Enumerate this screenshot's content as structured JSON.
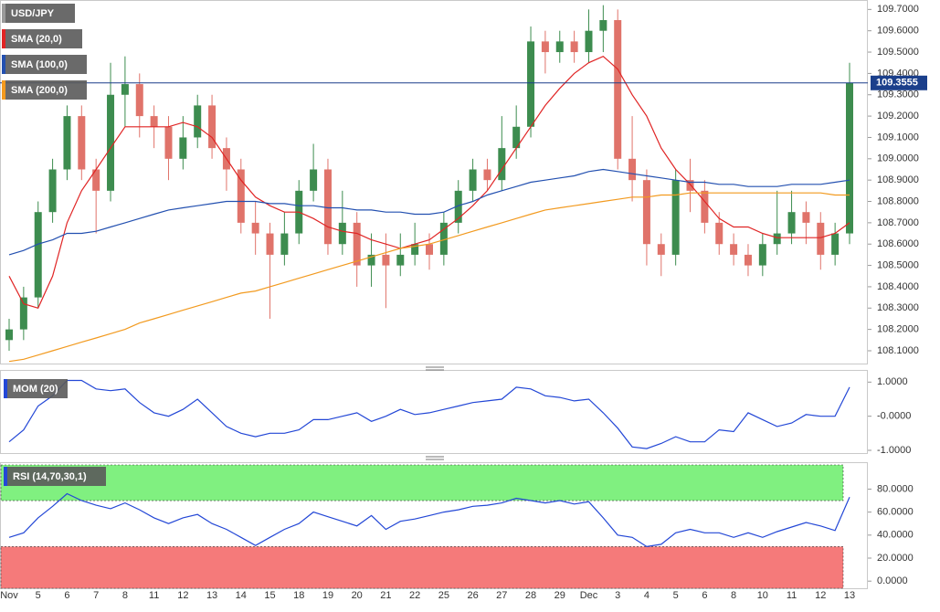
{
  "chart_data": [
    {
      "type": "candlestick",
      "title": "USD/JPY",
      "categories": [
        "Nov",
        null,
        "5",
        null,
        "6",
        null,
        "7",
        null,
        "8",
        null,
        "11",
        null,
        "12",
        null,
        "13",
        null,
        "14",
        null,
        "15",
        null,
        "18",
        null,
        "19",
        null,
        "20",
        null,
        "21",
        null,
        "22",
        null,
        "25",
        null,
        "26",
        null,
        "27",
        null,
        "28",
        null,
        "29",
        null,
        "Dec",
        null,
        "3",
        null,
        "4",
        null,
        "5",
        null,
        "6",
        null,
        "8",
        null,
        "10",
        null,
        "11",
        null,
        "12",
        null,
        "13"
      ],
      "open": [
        108.15,
        108.2,
        108.35,
        108.75,
        108.95,
        109.2,
        108.95,
        108.85,
        109.3,
        109.35,
        109.2,
        109.15,
        109.0,
        109.1,
        109.25,
        109.05,
        108.95,
        108.7,
        108.65,
        108.55,
        108.65,
        108.85,
        108.95,
        108.6,
        108.7,
        108.5,
        108.55,
        108.5,
        108.55,
        108.6,
        108.55,
        108.7,
        108.85,
        108.95,
        108.9,
        109.05,
        109.15,
        109.55,
        109.5,
        109.55,
        109.5,
        109.6,
        109.65,
        109.0,
        108.9,
        108.6,
        108.55,
        108.9,
        108.85,
        108.7,
        108.6,
        108.55,
        108.5,
        108.6,
        108.65,
        108.75,
        108.7,
        108.55,
        108.65
      ],
      "high": [
        108.25,
        108.4,
        108.8,
        109.0,
        109.25,
        109.25,
        109.0,
        109.45,
        109.48,
        109.4,
        109.25,
        109.2,
        109.2,
        109.3,
        109.3,
        109.1,
        109.0,
        108.8,
        108.7,
        108.75,
        108.9,
        109.07,
        109.0,
        108.85,
        108.75,
        108.65,
        108.65,
        108.65,
        108.7,
        108.65,
        108.75,
        108.9,
        109.0,
        109.0,
        109.2,
        109.25,
        109.62,
        109.6,
        109.6,
        109.6,
        109.7,
        109.72,
        109.7,
        109.2,
        108.95,
        108.65,
        108.95,
        109.0,
        108.9,
        108.75,
        108.65,
        108.6,
        108.65,
        108.85,
        108.85,
        108.8,
        108.75,
        108.7,
        109.45
      ],
      "low": [
        108.1,
        108.15,
        108.3,
        108.7,
        108.9,
        108.9,
        108.65,
        108.8,
        109.15,
        109.1,
        109.05,
        108.9,
        108.95,
        109.05,
        109.0,
        108.85,
        108.65,
        108.55,
        108.25,
        108.5,
        108.6,
        108.8,
        108.55,
        108.55,
        108.4,
        108.4,
        108.3,
        108.45,
        108.5,
        108.48,
        108.5,
        108.65,
        108.8,
        108.85,
        108.85,
        109.0,
        109.1,
        109.4,
        109.45,
        109.45,
        109.45,
        109.5,
        108.95,
        108.8,
        108.5,
        108.45,
        108.5,
        108.75,
        108.65,
        108.55,
        108.5,
        108.45,
        108.45,
        108.55,
        108.6,
        108.6,
        108.48,
        108.5,
        108.6
      ],
      "close": [
        108.2,
        108.35,
        108.75,
        108.95,
        109.2,
        108.95,
        108.85,
        109.3,
        109.35,
        109.2,
        109.15,
        109.0,
        109.1,
        109.25,
        109.05,
        108.95,
        108.7,
        108.65,
        108.55,
        108.65,
        108.85,
        108.95,
        108.6,
        108.7,
        108.5,
        108.55,
        108.5,
        108.55,
        108.6,
        108.55,
        108.7,
        108.85,
        108.95,
        108.9,
        109.05,
        109.15,
        109.55,
        109.5,
        109.55,
        109.5,
        109.6,
        109.65,
        109.0,
        108.9,
        108.6,
        108.55,
        108.9,
        108.85,
        108.7,
        108.6,
        108.55,
        108.5,
        108.6,
        108.65,
        108.75,
        108.7,
        108.55,
        108.65,
        109.3555
      ],
      "up_color": "#3d8c4f",
      "down_color": "#e0736a",
      "price_label": "109.3555",
      "price_color": "#1b3f8b",
      "series": [
        {
          "name": "SMA (20,0)",
          "color": "#e02424",
          "values": [
            108.45,
            108.32,
            108.3,
            108.45,
            108.7,
            108.85,
            108.95,
            109.05,
            109.15,
            109.15,
            109.15,
            109.15,
            109.17,
            109.15,
            109.1,
            109.0,
            108.9,
            108.82,
            108.78,
            108.75,
            108.75,
            108.72,
            108.68,
            108.66,
            108.65,
            108.62,
            108.6,
            108.58,
            108.6,
            108.62,
            108.67,
            108.72,
            108.78,
            108.85,
            108.95,
            109.05,
            109.15,
            109.25,
            109.33,
            109.4,
            109.45,
            109.48,
            109.42,
            109.3,
            109.2,
            109.05,
            108.95,
            108.88,
            108.8,
            108.72,
            108.68,
            108.68,
            108.65,
            108.63,
            108.63,
            108.63,
            108.63,
            108.65,
            108.7
          ]
        },
        {
          "name": "SMA (100,0)",
          "color": "#2350b0",
          "values": [
            108.55,
            108.57,
            108.6,
            108.62,
            108.65,
            108.65,
            108.66,
            108.68,
            108.7,
            108.72,
            108.74,
            108.76,
            108.77,
            108.78,
            108.79,
            108.8,
            108.8,
            108.8,
            108.79,
            108.79,
            108.78,
            108.78,
            108.77,
            108.77,
            108.76,
            108.76,
            108.75,
            108.75,
            108.74,
            108.74,
            108.75,
            108.78,
            108.8,
            108.83,
            108.85,
            108.87,
            108.89,
            108.9,
            108.91,
            108.92,
            108.94,
            108.95,
            108.94,
            108.93,
            108.92,
            108.91,
            108.9,
            108.89,
            108.89,
            108.88,
            108.88,
            108.87,
            108.87,
            108.87,
            108.88,
            108.88,
            108.88,
            108.89,
            108.9
          ]
        },
        {
          "name": "SMA (200,0)",
          "color": "#f29a1f",
          "values": [
            108.05,
            108.06,
            108.08,
            108.1,
            108.12,
            108.14,
            108.16,
            108.18,
            108.2,
            108.23,
            108.25,
            108.27,
            108.29,
            108.31,
            108.33,
            108.35,
            108.37,
            108.38,
            108.4,
            108.42,
            108.44,
            108.46,
            108.48,
            108.5,
            108.52,
            108.54,
            108.56,
            108.58,
            108.59,
            108.6,
            108.62,
            108.64,
            108.66,
            108.68,
            108.7,
            108.72,
            108.74,
            108.76,
            108.77,
            108.78,
            108.79,
            108.8,
            108.81,
            108.82,
            108.82,
            108.83,
            108.83,
            108.84,
            108.84,
            108.84,
            108.84,
            108.84,
            108.84,
            108.84,
            108.84,
            108.84,
            108.84,
            108.83,
            108.83
          ]
        }
      ],
      "ylim": [
        108.04,
        109.74
      ],
      "yticks": [
        {
          "value": 108.1,
          "label": "108.1000"
        },
        {
          "value": 108.2,
          "label": "108.2000"
        },
        {
          "value": 108.3,
          "label": "108.3000"
        },
        {
          "value": 108.4,
          "label": "108.4000"
        },
        {
          "value": 108.5,
          "label": "108.5000"
        },
        {
          "value": 108.6,
          "label": "108.6000"
        },
        {
          "value": 108.7,
          "label": "108.7000"
        },
        {
          "value": 108.8,
          "label": "108.8000"
        },
        {
          "value": 108.9,
          "label": "108.9000"
        },
        {
          "value": 109.0,
          "label": "109.0000"
        },
        {
          "value": 109.1,
          "label": "109.1000"
        },
        {
          "value": 109.2,
          "label": "109.2000"
        },
        {
          "value": 109.3,
          "label": "109.3000"
        },
        {
          "value": 109.4,
          "label": "109.4000"
        },
        {
          "value": 109.5,
          "label": "109.5000"
        },
        {
          "value": 109.6,
          "label": "109.6000"
        },
        {
          "value": 109.7,
          "label": "109.7000"
        }
      ]
    },
    {
      "type": "line",
      "series": [
        {
          "name": "MOM (20)",
          "color": "#2347d6",
          "values": [
            -0.75,
            -0.4,
            0.3,
            0.6,
            1.05,
            1.05,
            0.8,
            0.75,
            0.8,
            0.4,
            0.1,
            0.0,
            0.2,
            0.5,
            0.1,
            -0.3,
            -0.5,
            -0.6,
            -0.5,
            -0.5,
            -0.4,
            -0.1,
            -0.1,
            0.0,
            0.1,
            -0.15,
            0.0,
            0.2,
            0.05,
            0.1,
            0.2,
            0.3,
            0.4,
            0.45,
            0.5,
            0.85,
            0.8,
            0.6,
            0.55,
            0.45,
            0.5,
            0.1,
            -0.35,
            -0.9,
            -0.95,
            -0.8,
            -0.6,
            -0.75,
            -0.75,
            -0.4,
            -0.45,
            0.1,
            -0.1,
            -0.3,
            -0.2,
            0.05,
            0.0,
            0.0,
            0.85
          ]
        }
      ],
      "ylim": [
        -1.08,
        1.33
      ],
      "yticks": [
        {
          "value": -1,
          "label": "-1.0000"
        },
        {
          "value": 0,
          "label": "-0.0000"
        },
        {
          "value": 1,
          "label": "1.0000"
        }
      ]
    },
    {
      "type": "line",
      "series": [
        {
          "name": "RSI (14,70,30,1)",
          "color": "#2347d6",
          "values": [
            38,
            42,
            55,
            65,
            76,
            70,
            66,
            63,
            68,
            62,
            55,
            50,
            55,
            58,
            50,
            45,
            38,
            31,
            38,
            45,
            50,
            60,
            56,
            52,
            48,
            57,
            45,
            52,
            54,
            57,
            60,
            62,
            65,
            66,
            68,
            72,
            70,
            68,
            70,
            67,
            69,
            55,
            40,
            38,
            30,
            32,
            42,
            45,
            42,
            42,
            38,
            42,
            38,
            43,
            47,
            51,
            48,
            44,
            73
          ]
        }
      ],
      "overbought": 70,
      "oversold": 30,
      "overbought_color": "#80f080",
      "oversold_color": "#f57a7a",
      "ylim": [
        -6.2,
        102.6
      ],
      "yticks": [
        {
          "value": 0,
          "label": "0.0000"
        },
        {
          "value": 20,
          "label": "20.0000"
        },
        {
          "value": 40,
          "label": "40.0000"
        },
        {
          "value": 60,
          "label": "60.0000"
        },
        {
          "value": 80,
          "label": "80.0000"
        }
      ]
    }
  ]
}
